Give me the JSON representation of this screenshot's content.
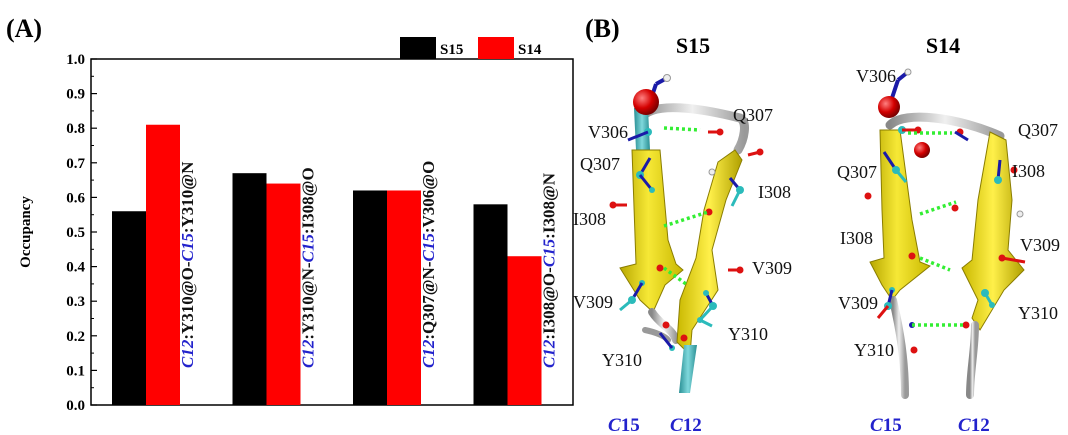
{
  "panel_a_label": "(A)",
  "panel_b_label": "(B)",
  "chart_data": {
    "type": "bar",
    "categories": [
      {
        "pre": "C12",
        "mid": ":Y310@O-",
        "chain": "C15",
        "post": ":Y310@N"
      },
      {
        "pre": "C12",
        "mid": ":Y310@N-",
        "chain": "C15",
        "post": ":I308@O"
      },
      {
        "pre": "C12",
        "mid": ":Q307@N-",
        "chain": "C15",
        "post": ":V306@O"
      },
      {
        "pre": "C12",
        "mid": ":I308@O-",
        "chain": "C15",
        "post": ":I308@N"
      }
    ],
    "series": [
      {
        "name": "S15",
        "color": "#000000",
        "values": [
          0.56,
          0.67,
          0.62,
          0.58
        ]
      },
      {
        "name": "S14",
        "color": "#ff0000",
        "values": [
          0.81,
          0.64,
          0.62,
          0.43
        ]
      }
    ],
    "ylabel": "Occupancy",
    "ylim": [
      0.0,
      1.0
    ],
    "yticks": [
      "0.0",
      "0.1",
      "0.2",
      "0.3",
      "0.4",
      "0.5",
      "0.6",
      "0.7",
      "0.8",
      "0.9",
      "1.0"
    ],
    "legend_position": "top-right",
    "grid": false,
    "label_color_chain": "#2222cc",
    "label_color_text": "#111111"
  },
  "structures": [
    {
      "title": "S15",
      "left_labels": [
        "V306",
        "Q307",
        "I308",
        "V309",
        "Y310"
      ],
      "right_labels": [
        "Q307",
        "I308",
        "V309",
        "Y310"
      ],
      "chains": [
        {
          "pre": "C",
          "num": "15"
        },
        {
          "pre": "C",
          "num": "12"
        }
      ]
    },
    {
      "title": "S14",
      "left_labels": [
        "V306",
        "Q307",
        "I308",
        "V309",
        "Y310"
      ],
      "right_labels": [
        "Q307",
        "I308",
        "V309",
        "Y310"
      ],
      "chains": [
        {
          "pre": "C",
          "num": "15"
        },
        {
          "pre": "C",
          "num": "12"
        }
      ]
    }
  ]
}
